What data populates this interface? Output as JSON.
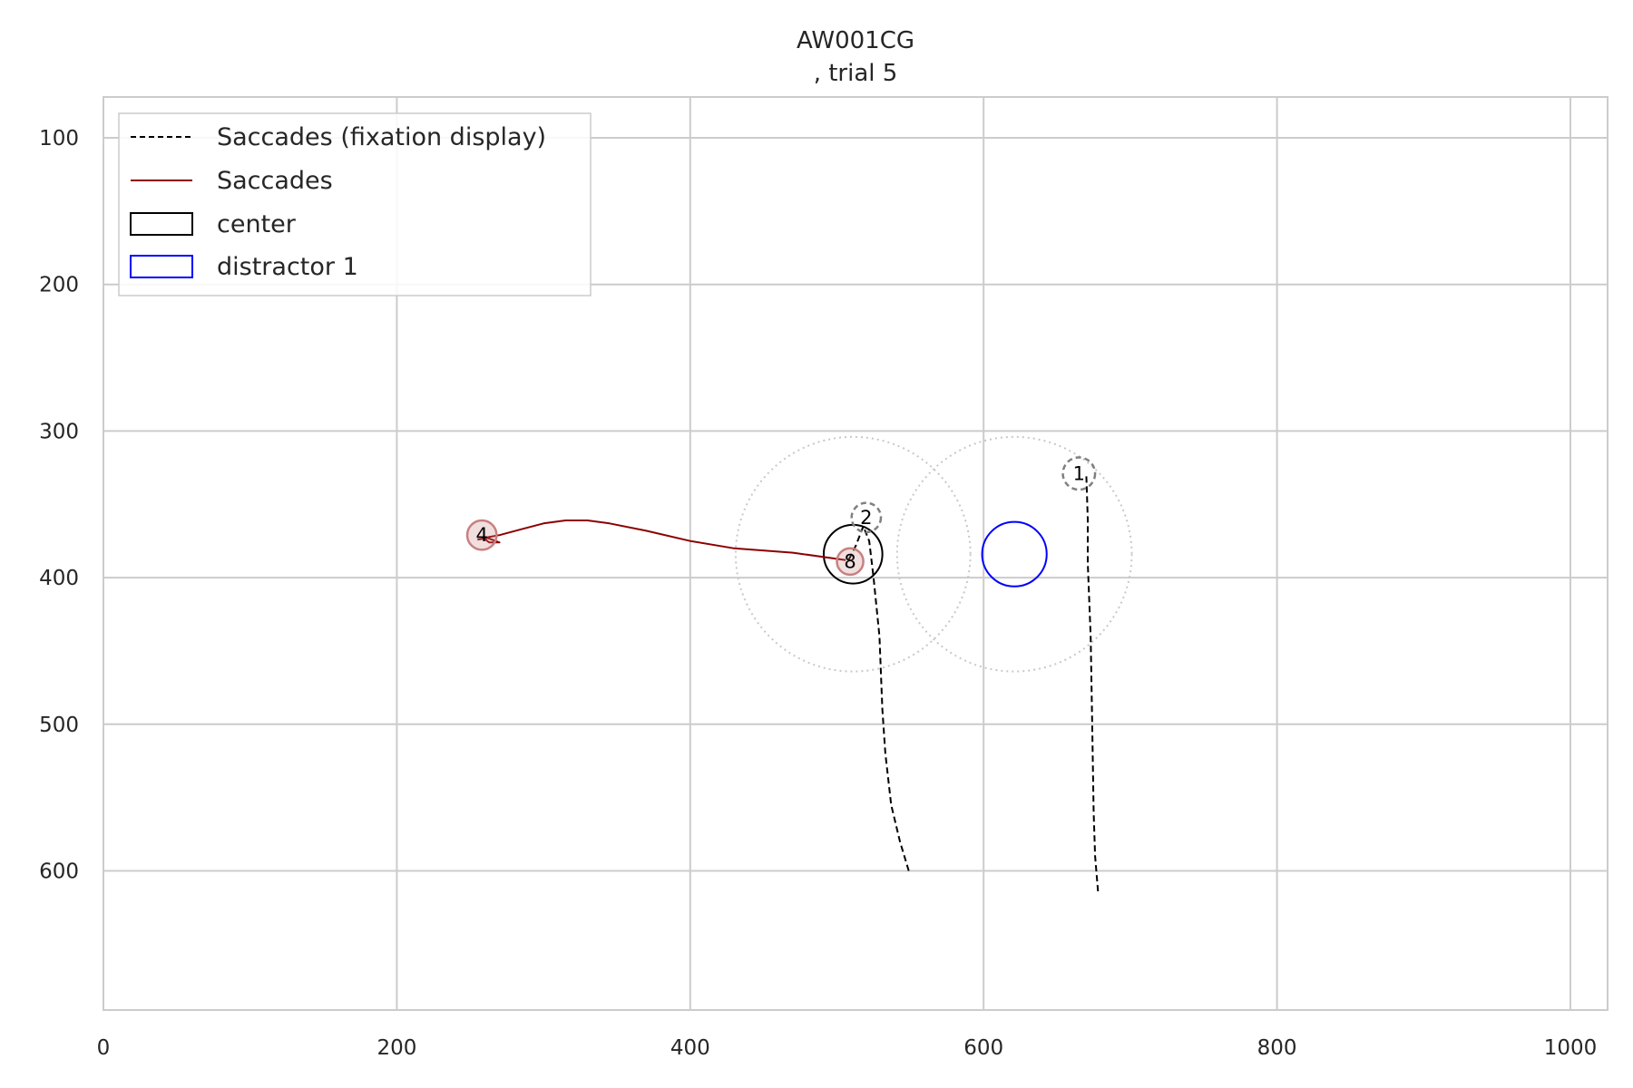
{
  "chart_data": {
    "type": "scatter",
    "title": "AW001CG",
    "subtitle": ", trial 5",
    "xlabel": "",
    "ylabel": "",
    "xlim": [
      0,
      1025
    ],
    "ylim": [
      695,
      72
    ],
    "y_inverted": true,
    "grid": true,
    "x_ticks": [
      0,
      200,
      400,
      600,
      800,
      1000
    ],
    "y_ticks": [
      100,
      200,
      300,
      400,
      500,
      600
    ],
    "legend": {
      "placement": "top-left",
      "entries": [
        {
          "label": "Saccades (fixation display)",
          "style": "dashed-line",
          "color": "#000000"
        },
        {
          "label": "Saccades",
          "style": "line",
          "color": "#8b0000"
        },
        {
          "label": "center",
          "style": "box",
          "color": "#000000"
        },
        {
          "label": "distractor 1",
          "style": "box",
          "color": "#0000ff"
        }
      ]
    },
    "regions": [
      {
        "name": "center",
        "x": 511,
        "y": 384,
        "r": 20,
        "color": "#000000"
      },
      {
        "name": "distractor 1",
        "x": 621,
        "y": 384,
        "r": 22,
        "color": "#0000ff"
      },
      {
        "name": "center-area",
        "x": 511,
        "y": 384,
        "r": 80,
        "color": "#c8c8c8",
        "style": "dotted"
      },
      {
        "name": "distractor-area",
        "x": 621,
        "y": 384,
        "r": 80,
        "color": "#c8c8c8",
        "style": "dotted"
      }
    ],
    "series": [
      {
        "name": "Saccades (fixation display)",
        "style": "dashed",
        "color": "#000000",
        "segments": [
          [
            [
              678,
              614
            ],
            [
              676,
              590
            ],
            [
              675,
              560
            ],
            [
              674,
              500
            ],
            [
              673,
              440
            ],
            [
              671,
              390
            ],
            [
              671,
              360
            ],
            [
              670,
              330
            ]
          ],
          [
            [
              549,
              600
            ],
            [
              543,
              580
            ],
            [
              537,
              555
            ],
            [
              533,
              520
            ],
            [
              531,
              490
            ],
            [
              529,
              440
            ],
            [
              525,
              400
            ],
            [
              522,
              375
            ],
            [
              518,
              365
            ]
          ],
          [
            [
              518,
              365
            ],
            [
              513,
              378
            ],
            [
              508,
              388
            ]
          ]
        ]
      },
      {
        "name": "Saccades",
        "style": "solid",
        "color": "#8b0000",
        "segments": [
          [
            [
              506,
              388
            ],
            [
              470,
              383
            ],
            [
              430,
              380
            ],
            [
              400,
              375
            ],
            [
              370,
              368
            ],
            [
              345,
              363
            ],
            [
              330,
              361
            ],
            [
              315,
              361
            ],
            [
              300,
              363
            ],
            [
              285,
              367
            ],
            [
              270,
              371
            ],
            [
              259,
              373
            ],
            [
              263,
              376
            ],
            [
              270,
              376
            ],
            [
              262,
              373
            ],
            [
              255,
              374
            ]
          ]
        ]
      }
    ],
    "fixations": [
      {
        "label": "1",
        "x": 665,
        "y": 329,
        "r": 11,
        "style": "dashed",
        "color": "#808080"
      },
      {
        "label": "2",
        "x": 520,
        "y": 359,
        "r": 10,
        "style": "dashed",
        "color": "#808080"
      },
      {
        "label": "4",
        "x": 258,
        "y": 371,
        "r": 10,
        "style": "solid",
        "color": "#c88080"
      },
      {
        "label": "8",
        "x": 509,
        "y": 389,
        "r": 9,
        "style": "solid",
        "color": "#c88080"
      }
    ]
  }
}
